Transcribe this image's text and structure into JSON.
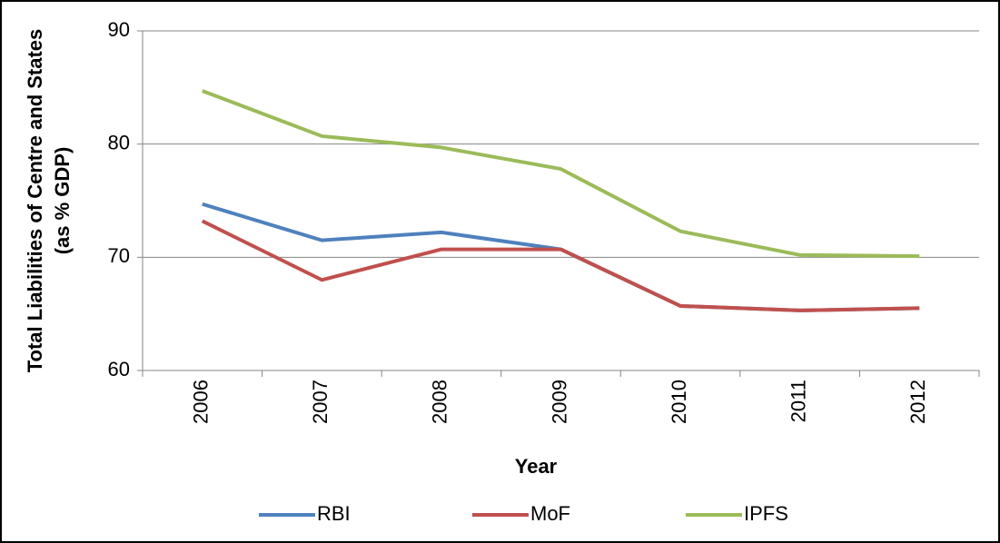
{
  "chart_data": {
    "type": "line",
    "x_label": "Year",
    "y_label": [
      "Total Liabilities of Centre and States",
      "(as % GDP)"
    ],
    "categories": [
      "2006",
      "2007",
      "2008",
      "2009",
      "2010",
      "2011",
      "2012"
    ],
    "series": [
      {
        "name": "RBI",
        "color": "#4f81bd",
        "values": [
          74.7,
          71.5,
          72.2,
          70.7,
          65.7,
          65.3,
          65.5
        ]
      },
      {
        "name": "MoF",
        "color": "#c0504d",
        "values": [
          73.2,
          68.0,
          70.7,
          70.7,
          65.7,
          65.3,
          65.5
        ]
      },
      {
        "name": "IPFS",
        "color": "#9bbb59",
        "values": [
          84.7,
          80.7,
          79.7,
          77.8,
          72.3,
          70.2,
          70.1
        ]
      }
    ],
    "ylim": [
      60,
      90
    ],
    "yticks": [
      60,
      70,
      80,
      90
    ],
    "grid": true,
    "legend": "bottom"
  }
}
